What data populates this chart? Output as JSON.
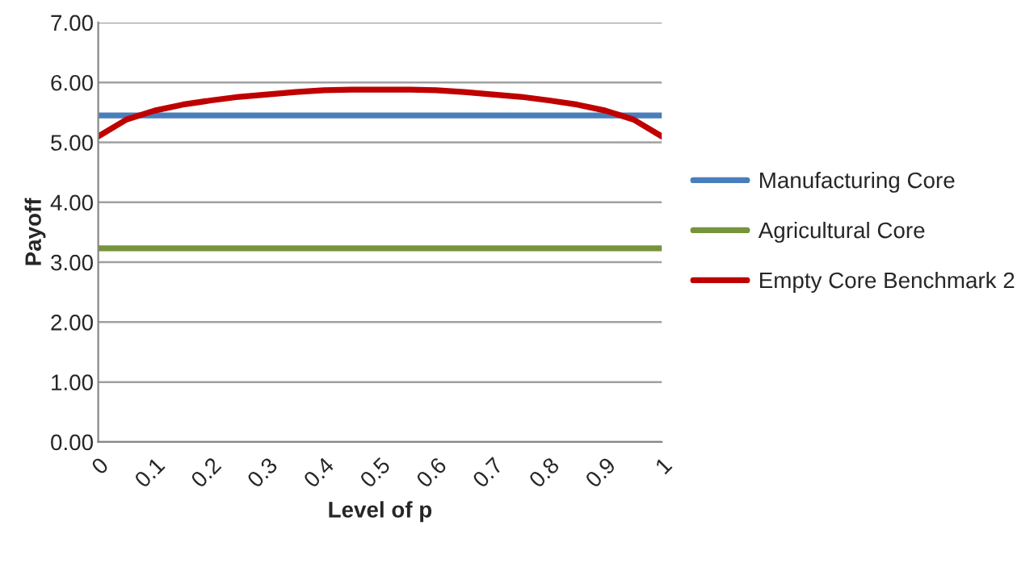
{
  "chart_data": {
    "type": "line",
    "xlabel": "Level of p",
    "ylabel": "Payoff",
    "categories": [
      "0",
      null,
      "0.1",
      null,
      "0.2",
      null,
      "0.3",
      null,
      "0.4",
      null,
      "0.5",
      null,
      "0.6",
      null,
      "0.7",
      null,
      "0.8",
      null,
      "0.9",
      null,
      "1"
    ],
    "series": [
      {
        "name": "Manufacturing Core",
        "color": "#4a7ebb",
        "values": [
          5.45,
          5.45,
          5.45,
          5.45,
          5.45,
          5.45,
          5.45,
          5.45,
          5.45,
          5.45,
          5.45,
          5.45,
          5.45,
          5.45,
          5.45,
          5.45,
          5.45,
          5.45,
          5.45,
          5.45,
          5.45
        ]
      },
      {
        "name": "Agricultural Core",
        "color": "#77933c",
        "values": [
          3.23,
          3.23,
          3.23,
          3.23,
          3.23,
          3.23,
          3.23,
          3.23,
          3.23,
          3.23,
          3.23,
          3.23,
          3.23,
          3.23,
          3.23,
          3.23,
          3.23,
          3.23,
          3.23,
          3.23,
          3.23
        ]
      },
      {
        "name": "Empty Core Benchmark 2",
        "color": "#c00000",
        "values": [
          5.1,
          5.38,
          5.53,
          5.63,
          5.7,
          5.76,
          5.8,
          5.84,
          5.87,
          5.88,
          5.88,
          5.88,
          5.87,
          5.84,
          5.8,
          5.76,
          5.7,
          5.63,
          5.53,
          5.38,
          5.1
        ]
      }
    ],
    "ylim": [
      0,
      7
    ],
    "yticks": [
      {
        "value": 0,
        "label": "0.00"
      },
      {
        "value": 1,
        "label": "1.00"
      },
      {
        "value": 2,
        "label": "2.00"
      },
      {
        "value": 3,
        "label": "3.00"
      },
      {
        "value": 4,
        "label": "4.00"
      },
      {
        "value": 5,
        "label": "5.00"
      },
      {
        "value": 6,
        "label": "6.00"
      },
      {
        "value": 7,
        "label": "7.00"
      }
    ],
    "grid": "y",
    "legend": "right",
    "marker": "none",
    "line_style": "solid"
  }
}
